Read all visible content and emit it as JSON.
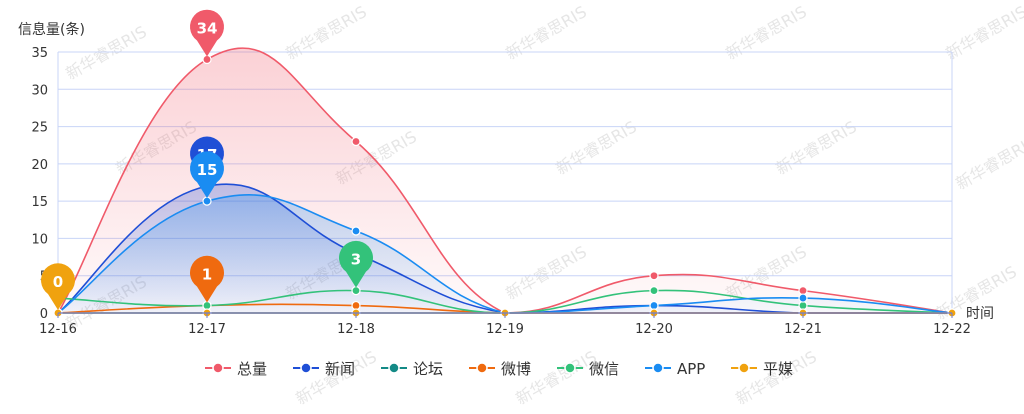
{
  "chart_data": {
    "type": "area",
    "ylabel": "信息量(条)",
    "xlabel": "时间",
    "ylim": [
      0,
      35
    ],
    "yticks": [
      0,
      5,
      10,
      15,
      20,
      25,
      30,
      35
    ],
    "categories": [
      "12-16",
      "12-17",
      "12-18",
      "12-19",
      "12-20",
      "12-21",
      "12-22"
    ],
    "grid": true,
    "legend_position": "bottom",
    "watermark": "新华睿思RIS",
    "series": [
      {
        "name": "总量",
        "values": [
          0,
          34,
          23,
          0,
          5,
          3,
          0
        ],
        "color": "#f05a6a",
        "filled": true
      },
      {
        "name": "新闻",
        "values": [
          0,
          17,
          8,
          0,
          1,
          0,
          0
        ],
        "color": "#1f4fd6",
        "filled": true
      },
      {
        "name": "论坛",
        "values": [
          0,
          0,
          0,
          0,
          0,
          0,
          0
        ],
        "color": "#138a86",
        "filled": false
      },
      {
        "name": "微博",
        "values": [
          0,
          1,
          1,
          0,
          0,
          0,
          0
        ],
        "color": "#ef6a0f",
        "filled": false
      },
      {
        "name": "微信",
        "values": [
          2,
          1,
          3,
          0,
          3,
          1,
          0
        ],
        "color": "#33c27a",
        "filled": false
      },
      {
        "name": "APP",
        "values": [
          0,
          15,
          11,
          0,
          1,
          2,
          0
        ],
        "color": "#1a8cf2",
        "filled": true
      },
      {
        "name": "平媒",
        "values": [
          0,
          0,
          0,
          0,
          0,
          0,
          0
        ],
        "color": "#f0a20f",
        "filled": false
      }
    ],
    "markers": [
      {
        "series": "总量",
        "category": "12-17",
        "value": 34,
        "label": "34"
      },
      {
        "series": "新闻",
        "category": "12-17",
        "value": 17,
        "label": "17"
      },
      {
        "series": "APP",
        "category": "12-17",
        "value": 15,
        "label": "15"
      },
      {
        "series": "微博",
        "category": "12-17",
        "value": 1,
        "label": "1"
      },
      {
        "series": "微信",
        "category": "12-18",
        "value": 3,
        "label": "3"
      },
      {
        "series": "平媒",
        "category": "12-16",
        "value": 0,
        "label": "0"
      }
    ]
  }
}
